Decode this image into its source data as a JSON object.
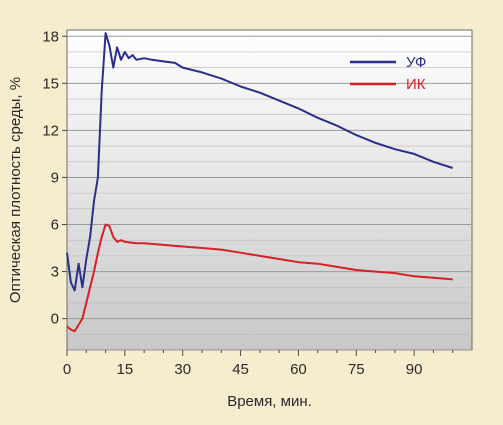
{
  "chart_data": {
    "type": "line",
    "title": "",
    "xlabel": "Время, мин.",
    "ylabel": "Оптическая плотность среды, %",
    "xlim": [
      0,
      105
    ],
    "ylim": [
      -2,
      18.4
    ],
    "xticks": [
      0,
      15,
      30,
      45,
      60,
      75,
      90
    ],
    "yticks": [
      0,
      3,
      6,
      9,
      12,
      15,
      18
    ],
    "grid": true,
    "legend_position": "top-right",
    "background_colors": {
      "page": "#f6ecce",
      "plot_top": "#ffffff",
      "plot_bottom": "#c8c8c8"
    },
    "series": [
      {
        "name": "УФ",
        "color": "#2a2f8a",
        "points": [
          [
            0,
            4.2
          ],
          [
            1,
            2.3
          ],
          [
            2,
            1.8
          ],
          [
            3,
            3.5
          ],
          [
            4,
            2.0
          ],
          [
            5,
            3.8
          ],
          [
            6,
            5.2
          ],
          [
            7,
            7.5
          ],
          [
            8,
            9.0
          ],
          [
            9,
            14.5
          ],
          [
            10,
            18.2
          ],
          [
            11,
            17.4
          ],
          [
            12,
            16.0
          ],
          [
            13,
            17.3
          ],
          [
            14,
            16.5
          ],
          [
            15,
            17.0
          ],
          [
            16,
            16.6
          ],
          [
            17,
            16.8
          ],
          [
            18,
            16.5
          ],
          [
            20,
            16.6
          ],
          [
            22,
            16.5
          ],
          [
            25,
            16.4
          ],
          [
            28,
            16.3
          ],
          [
            30,
            16.0
          ],
          [
            35,
            15.7
          ],
          [
            40,
            15.3
          ],
          [
            45,
            14.8
          ],
          [
            50,
            14.4
          ],
          [
            55,
            13.9
          ],
          [
            60,
            13.4
          ],
          [
            65,
            12.8
          ],
          [
            70,
            12.3
          ],
          [
            75,
            11.7
          ],
          [
            80,
            11.2
          ],
          [
            85,
            10.8
          ],
          [
            90,
            10.5
          ],
          [
            95,
            10.0
          ],
          [
            100,
            9.6
          ]
        ]
      },
      {
        "name": "ИК",
        "color": "#d42127",
        "points": [
          [
            0,
            -0.5
          ],
          [
            1,
            -0.7
          ],
          [
            2,
            -0.8
          ],
          [
            3,
            -0.4
          ],
          [
            4,
            0.0
          ],
          [
            5,
            1.0
          ],
          [
            6,
            2.0
          ],
          [
            7,
            3.0
          ],
          [
            8,
            4.2
          ],
          [
            9,
            5.2
          ],
          [
            10,
            6.0
          ],
          [
            11,
            5.9
          ],
          [
            12,
            5.2
          ],
          [
            13,
            4.9
          ],
          [
            14,
            5.0
          ],
          [
            15,
            4.9
          ],
          [
            18,
            4.8
          ],
          [
            20,
            4.8
          ],
          [
            25,
            4.7
          ],
          [
            30,
            4.6
          ],
          [
            35,
            4.5
          ],
          [
            40,
            4.4
          ],
          [
            45,
            4.2
          ],
          [
            50,
            4.0
          ],
          [
            55,
            3.8
          ],
          [
            60,
            3.6
          ],
          [
            65,
            3.5
          ],
          [
            70,
            3.3
          ],
          [
            75,
            3.1
          ],
          [
            80,
            3.0
          ],
          [
            85,
            2.9
          ],
          [
            90,
            2.7
          ],
          [
            95,
            2.6
          ],
          [
            100,
            2.5
          ]
        ]
      }
    ]
  }
}
